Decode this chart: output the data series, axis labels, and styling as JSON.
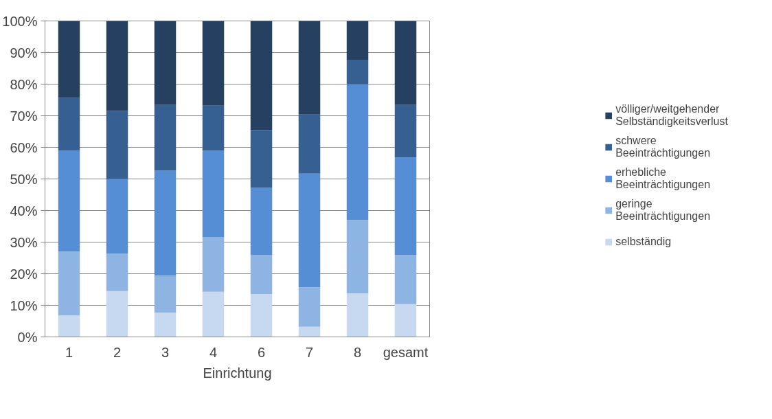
{
  "chart_data": {
    "type": "bar",
    "stacked": true,
    "xlabel": "Einrichtung",
    "categories": [
      "1",
      "2",
      "3",
      "4",
      "6",
      "7",
      "8",
      "gesamt"
    ],
    "series": [
      {
        "name": "selbständig",
        "color": "#c6d9f1",
        "values": [
          6.8,
          14.5,
          7.7,
          14.3,
          13.6,
          3.2,
          13.8,
          10.4
        ]
      },
      {
        "name": "geringe Beeinträchtigungen",
        "color": "#8eb4e3",
        "values": [
          20.2,
          11.9,
          11.7,
          17.2,
          12.4,
          12.5,
          23.2,
          15.6
        ]
      },
      {
        "name": "erhebliche Beeinträchtigungen",
        "color": "#558ed5",
        "values": [
          31.9,
          23.6,
          33.2,
          27.4,
          21.2,
          36.0,
          43.0,
          30.8
        ]
      },
      {
        "name": "schwere Beeinträchtigungen",
        "color": "#376092",
        "values": [
          16.8,
          21.5,
          20.8,
          14.3,
          18.3,
          18.7,
          7.7,
          16.6
        ]
      },
      {
        "name": "völliger/weitgehender Selbständigkeitsverlust",
        "color": "#254061",
        "values": [
          24.3,
          28.5,
          26.6,
          26.8,
          34.5,
          29.6,
          12.3,
          26.6
        ]
      }
    ],
    "ylim": [
      0,
      100
    ],
    "yticks": [
      {
        "value": 0,
        "label": "0%"
      },
      {
        "value": 10,
        "label": "10%"
      },
      {
        "value": 20,
        "label": "20%"
      },
      {
        "value": 30,
        "label": "30%"
      },
      {
        "value": 40,
        "label": "40%"
      },
      {
        "value": 50,
        "label": "50%"
      },
      {
        "value": 60,
        "label": "60%"
      },
      {
        "value": 70,
        "label": "70%"
      },
      {
        "value": 80,
        "label": "80%"
      },
      {
        "value": 90,
        "label": "90%"
      },
      {
        "value": 100,
        "label": "100%"
      }
    ],
    "grid": "y",
    "legend": "right"
  }
}
